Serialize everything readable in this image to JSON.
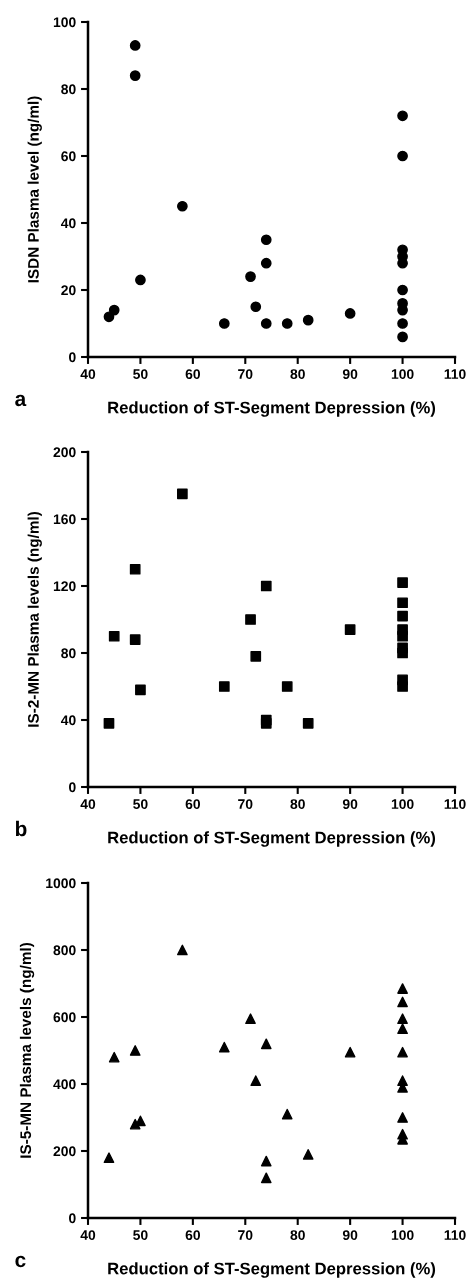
{
  "chart_data": [
    {
      "type": "scatter",
      "xlabel": "Reduction of ST-Segment Depression (%)",
      "ylabel": "ISDN Plasma level (ng/ml)",
      "annotations": [
        "a"
      ],
      "marker": "circle",
      "xlim": [
        40,
        110
      ],
      "xticks": [
        40,
        50,
        60,
        70,
        80,
        90,
        100,
        110
      ],
      "ylim": [
        0,
        100
      ],
      "yticks": [
        0,
        20,
        40,
        60,
        80,
        100
      ],
      "series": [
        {
          "color": "#000000",
          "x": [
            44,
            45,
            49,
            49,
            50,
            58,
            66,
            71,
            72,
            74,
            74,
            74,
            78,
            82,
            90,
            100,
            100,
            100,
            100,
            100,
            100,
            100,
            100,
            100,
            100
          ],
          "values": [
            12,
            14,
            93,
            84,
            23,
            45,
            10,
            24,
            15,
            35,
            28,
            10,
            10,
            11,
            13,
            72,
            60,
            32,
            30,
            28,
            20,
            16,
            14,
            10,
            6
          ]
        }
      ]
    },
    {
      "type": "scatter",
      "xlabel": "Reduction of ST-Segment Depression (%)",
      "ylabel": "IS-2-MN Plasma levels (ng/ml)",
      "annotations": [
        "b"
      ],
      "marker": "square",
      "xlim": [
        40,
        110
      ],
      "xticks": [
        40,
        50,
        60,
        70,
        80,
        90,
        100,
        110
      ],
      "ylim": [
        0,
        200
      ],
      "yticks": [
        0,
        40,
        80,
        120,
        160,
        200
      ],
      "series": [
        {
          "color": "#000000",
          "x": [
            44,
            45,
            49,
            49,
            50,
            58,
            66,
            71,
            72,
            74,
            74,
            74,
            78,
            82,
            90,
            100,
            100,
            100,
            100,
            100,
            100,
            100,
            100,
            100
          ],
          "values": [
            38,
            90,
            130,
            88,
            58,
            175,
            60,
            100,
            78,
            120,
            40,
            38,
            60,
            38,
            94,
            122,
            110,
            102,
            94,
            90,
            83,
            80,
            64,
            60
          ]
        }
      ]
    },
    {
      "type": "scatter",
      "xlabel": "Reduction of ST-Segment Depression (%)",
      "ylabel": "IS-5-MN Plasma levels (ng/ml)",
      "annotations": [
        "c"
      ],
      "marker": "triangle",
      "xlim": [
        40,
        110
      ],
      "xticks": [
        40,
        50,
        60,
        70,
        80,
        90,
        100,
        110
      ],
      "ylim": [
        0,
        1000
      ],
      "yticks": [
        0,
        200,
        400,
        600,
        800,
        1000
      ],
      "series": [
        {
          "color": "#000000",
          "x": [
            44,
            45,
            49,
            49,
            50,
            58,
            66,
            71,
            72,
            74,
            74,
            74,
            78,
            82,
            90,
            100,
            100,
            100,
            100,
            100,
            100,
            100,
            100,
            100,
            100
          ],
          "values": [
            180,
            480,
            500,
            280,
            290,
            800,
            510,
            595,
            410,
            520,
            170,
            120,
            310,
            190,
            495,
            685,
            645,
            595,
            565,
            495,
            410,
            390,
            300,
            250,
            235
          ]
        }
      ]
    }
  ]
}
